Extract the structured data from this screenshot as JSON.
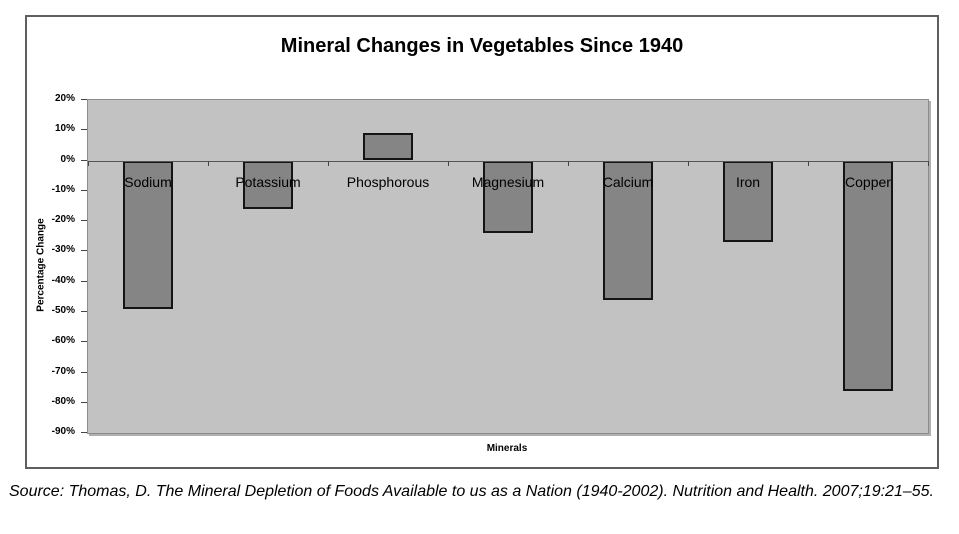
{
  "chart_data": {
    "type": "bar",
    "title": "Mineral Changes in Vegetables Since 1940",
    "categories": [
      "Sodium",
      "Potassium",
      "Phosphorous",
      "Magnesium",
      "Calcium",
      "Iron",
      "Copper"
    ],
    "values": [
      -49,
      -16,
      9,
      -24,
      -46,
      -27,
      -76
    ],
    "xlabel": "Minerals",
    "ylabel": "Percentage Change",
    "ylim": [
      -90,
      20
    ],
    "ytick_step": 10,
    "ytick_labels": [
      "20%",
      "10%",
      "0%",
      "-10%",
      "-20%",
      "-30%",
      "-40%",
      "-50%",
      "-60%",
      "-70%",
      "-80%",
      "-90%"
    ],
    "grid": false,
    "legend": "none",
    "colors": {
      "bar_fill": "#858585",
      "bar_border": "#141414",
      "plot_bg": "#c2c2c2",
      "plot_border": "#8c8c8c",
      "axis_line": "#555555",
      "chart_border": "#5f5f5f"
    }
  },
  "source_note": "Source: Thomas, D. The Mineral Depletion of Foods Available to us as a Nation (1940-2002). Nutrition and Health. 2007;19:21–55."
}
